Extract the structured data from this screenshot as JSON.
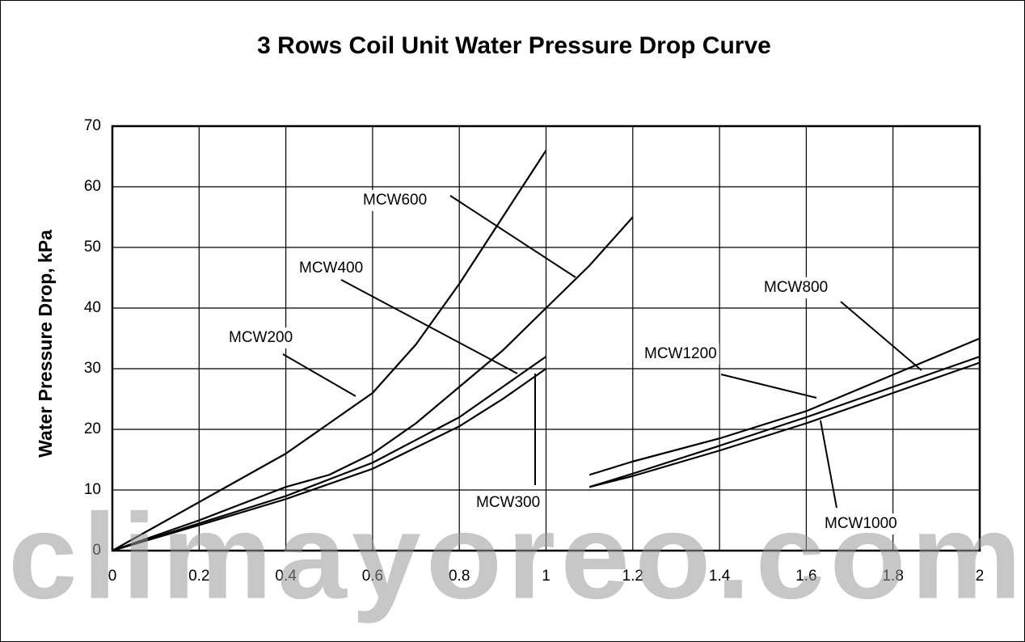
{
  "chart_data": {
    "type": "line",
    "title": "3 Rows Coil Unit Water Pressure Drop Curve",
    "y_label": "Water Pressure Drop, kPa",
    "watermark": "climayoreo.com",
    "xlim": [
      0,
      2
    ],
    "xticks": [
      0,
      0.2,
      0.4,
      0.6,
      0.8,
      1,
      1.2,
      1.4,
      1.6,
      1.8,
      2
    ],
    "ylim": [
      0,
      70
    ],
    "yticks": [
      0,
      10,
      20,
      30,
      40,
      50,
      60,
      70
    ],
    "grid": true,
    "series": [
      {
        "name": "MCW200",
        "color": "#000000",
        "x": [
          0,
          0.1,
          0.2,
          0.3,
          0.4,
          0.5,
          0.6,
          0.7,
          0.8,
          0.9,
          1.0
        ],
        "values": [
          0,
          4,
          8,
          12,
          16,
          21,
          26,
          34,
          44,
          55,
          66
        ]
      },
      {
        "name": "MCW300",
        "color": "#000000",
        "x": [
          0,
          0.2,
          0.4,
          0.6,
          0.8,
          0.9,
          1.0
        ],
        "values": [
          0,
          4.2,
          8.5,
          13.5,
          20.5,
          25,
          30
        ]
      },
      {
        "name": "MCW400",
        "color": "#000000",
        "x": [
          0,
          0.2,
          0.4,
          0.6,
          0.8,
          0.9,
          1.0
        ],
        "values": [
          0,
          4.5,
          9,
          14.5,
          22,
          27,
          32
        ]
      },
      {
        "name": "MCW600",
        "color": "#000000",
        "x": [
          0,
          0.2,
          0.4,
          0.5,
          0.6,
          0.7,
          0.8,
          0.9,
          1.0,
          1.1,
          1.2
        ],
        "values": [
          0,
          5,
          10.5,
          12.5,
          16,
          21,
          27,
          33,
          40,
          47,
          55
        ]
      },
      {
        "name": "MCW800",
        "color": "#000000",
        "x": [
          1.1,
          1.2,
          1.4,
          1.6,
          1.8,
          2
        ],
        "values": [
          10.5,
          12.7,
          17.3,
          22,
          27,
          32
        ]
      },
      {
        "name": "MCW1000",
        "color": "#000000",
        "x": [
          1.1,
          1.2,
          1.4,
          1.6,
          1.8,
          2
        ],
        "values": [
          10.5,
          12.3,
          16.5,
          21,
          26,
          31
        ]
      },
      {
        "name": "MCW1200",
        "color": "#000000",
        "x": [
          1.1,
          1.2,
          1.4,
          1.6,
          1.8,
          2
        ],
        "values": [
          12.5,
          14.7,
          18.5,
          23,
          29,
          35
        ]
      }
    ]
  }
}
